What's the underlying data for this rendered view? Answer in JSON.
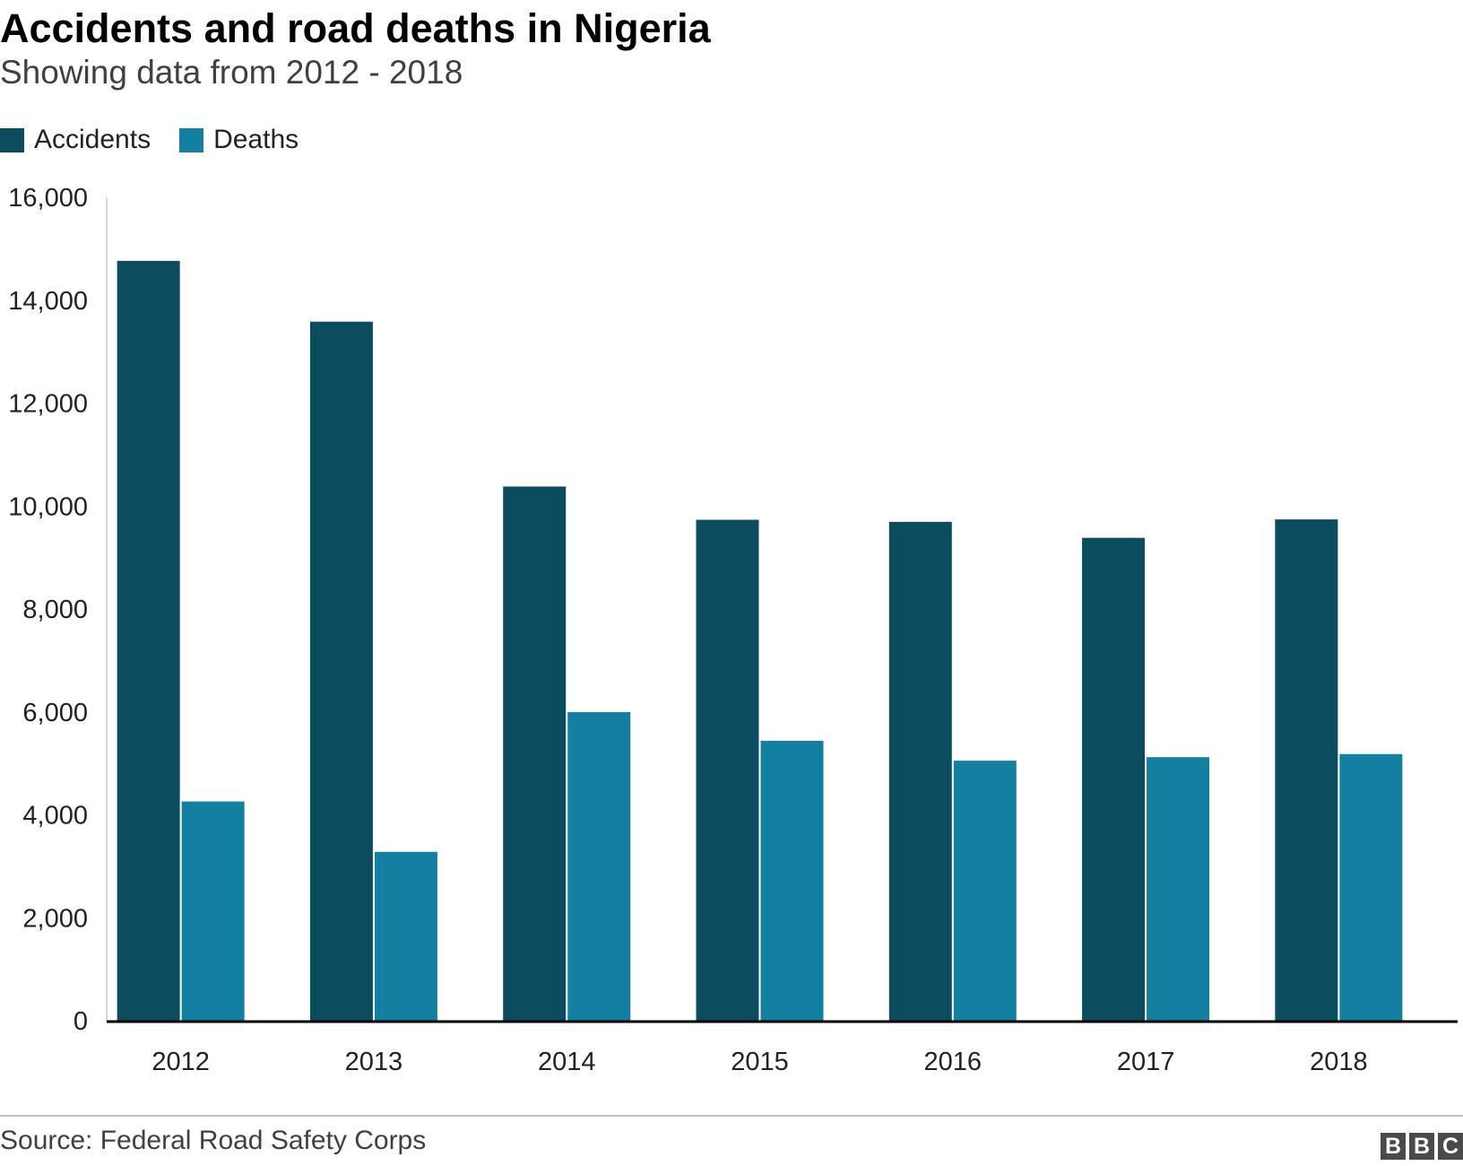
{
  "chart_data": {
    "type": "bar",
    "title": "Accidents and road deaths in Nigeria",
    "subtitle": "Showing data from 2012 - 2018",
    "categories": [
      "2012",
      "2013",
      "2014",
      "2015",
      "2016",
      "2017",
      "2018"
    ],
    "series": [
      {
        "name": "Accidents",
        "color": "#0b4d5f",
        "values": [
          14765,
          13583,
          10380,
          9734,
          9694,
          9383,
          9741
        ]
      },
      {
        "name": "Deaths",
        "color": "#1380a1",
        "values": [
          4260,
          3281,
          5996,
          5440,
          5053,
          5121,
          5181
        ]
      }
    ],
    "ylim": [
      0,
      16000
    ],
    "yticks": [
      0,
      2000,
      4000,
      6000,
      8000,
      10000,
      12000,
      14000,
      16000
    ],
    "ytick_labels": [
      "0",
      "2,000",
      "4,000",
      "6,000",
      "8,000",
      "10,000",
      "12,000",
      "14,000",
      "16,000"
    ],
    "grid": false,
    "legend_position": "top-left",
    "source": "Source: Federal Road Safety Corps",
    "logo": [
      "B",
      "B",
      "C"
    ]
  }
}
